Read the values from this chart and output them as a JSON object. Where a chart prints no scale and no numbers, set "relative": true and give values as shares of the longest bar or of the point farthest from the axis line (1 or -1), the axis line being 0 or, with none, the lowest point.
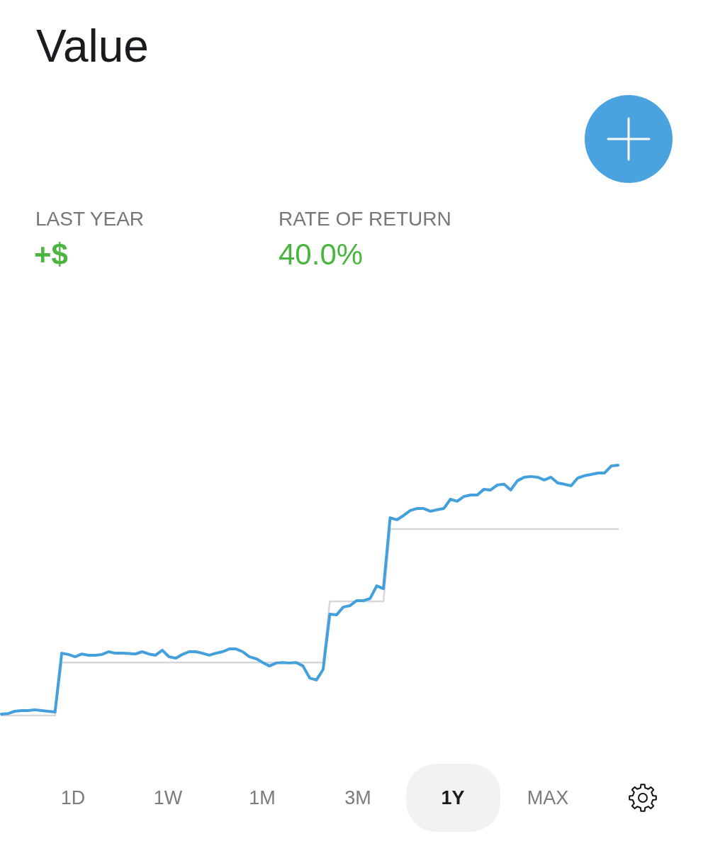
{
  "chart_data": {
    "type": "line",
    "title": "Value",
    "relative": true,
    "marker": "none",
    "annotations": [
      "LAST YEAR",
      "+$",
      "RATE OF RETURN",
      "40.0%",
      "1D",
      "1W",
      "1M",
      "3M",
      "1Y",
      "MAX"
    ],
    "categories": [
      null,
      null,
      null,
      null,
      null,
      null,
      null,
      null,
      null,
      null,
      null,
      null,
      null,
      null,
      null,
      null,
      null,
      null,
      null,
      null,
      null,
      null,
      null,
      null,
      null,
      null,
      null,
      null,
      null,
      null,
      null,
      null,
      null,
      null,
      null,
      null,
      null,
      null,
      null,
      null,
      null,
      null,
      null,
      null,
      null,
      null,
      null,
      null,
      null,
      null,
      null,
      null,
      null,
      null,
      null,
      null,
      null,
      null,
      null,
      null,
      null,
      null,
      null,
      null,
      null,
      null,
      null,
      null,
      null,
      null,
      null,
      null,
      null,
      null,
      null,
      null,
      null,
      null,
      null,
      null,
      null,
      null,
      null,
      null,
      null,
      null,
      null,
      null,
      null,
      null,
      null,
      null,
      null
    ],
    "series": [
      {
        "color": "#d6d6da",
        "values": [
          0,
          0,
          0,
          0,
          0,
          0,
          0,
          0,
          0,
          0.212,
          0.212,
          0.212,
          0.212,
          0.212,
          0.212,
          0.212,
          0.212,
          0.212,
          0.212,
          0.212,
          0.212,
          0.212,
          0.212,
          0.212,
          0.212,
          0.212,
          0.212,
          0.212,
          0.212,
          0.212,
          0.212,
          0.212,
          0.212,
          0.212,
          0.212,
          0.212,
          0.212,
          0.212,
          0.212,
          0.212,
          0.212,
          0.212,
          0.212,
          0.212,
          0.212,
          0.212,
          0.212,
          0.212,
          0.212,
          0.456,
          0.456,
          0.456,
          0.456,
          0.456,
          0.456,
          0.456,
          0.456,
          0.456,
          0.745,
          0.745,
          0.745,
          0.745,
          0.745,
          0.745,
          0.745,
          0.745,
          0.745,
          0.745,
          0.745,
          0.745,
          0.745,
          0.745,
          0.745,
          0.745,
          0.745,
          0.745,
          0.745,
          0.745,
          0.745,
          0.745,
          0.745,
          0.745,
          0.745,
          0.745,
          0.745,
          0.745,
          0.745,
          0.745,
          0.745,
          0.745,
          0.745,
          0.745,
          0.745
        ]
      },
      {
        "color": "#43a0dc",
        "values": [
          0.006,
          0.008,
          0.017,
          0.02,
          0.02,
          0.023,
          0.02,
          0.017,
          0.014,
          0.249,
          0.244,
          0.235,
          0.246,
          0.241,
          0.241,
          0.244,
          0.255,
          0.249,
          0.249,
          0.248,
          0.246,
          0.255,
          0.246,
          0.241,
          0.261,
          0.235,
          0.229,
          0.244,
          0.255,
          0.255,
          0.249,
          0.241,
          0.249,
          0.255,
          0.266,
          0.266,
          0.255,
          0.235,
          0.227,
          0.212,
          0.198,
          0.21,
          0.212,
          0.21,
          0.212,
          0.198,
          0.15,
          0.142,
          0.184,
          0.405,
          0.402,
          0.433,
          0.439,
          0.459,
          0.459,
          0.467,
          0.518,
          0.507,
          0.79,
          0.782,
          0.799,
          0.819,
          0.827,
          0.827,
          0.816,
          0.822,
          0.827,
          0.864,
          0.856,
          0.875,
          0.881,
          0.881,
          0.904,
          0.901,
          0.921,
          0.924,
          0.901,
          0.938,
          0.952,
          0.955,
          0.952,
          0.941,
          0.952,
          0.929,
          0.924,
          0.918,
          0.949,
          0.958,
          0.963,
          0.969,
          0.969,
          0.997,
          1
        ]
      }
    ]
  }
}
